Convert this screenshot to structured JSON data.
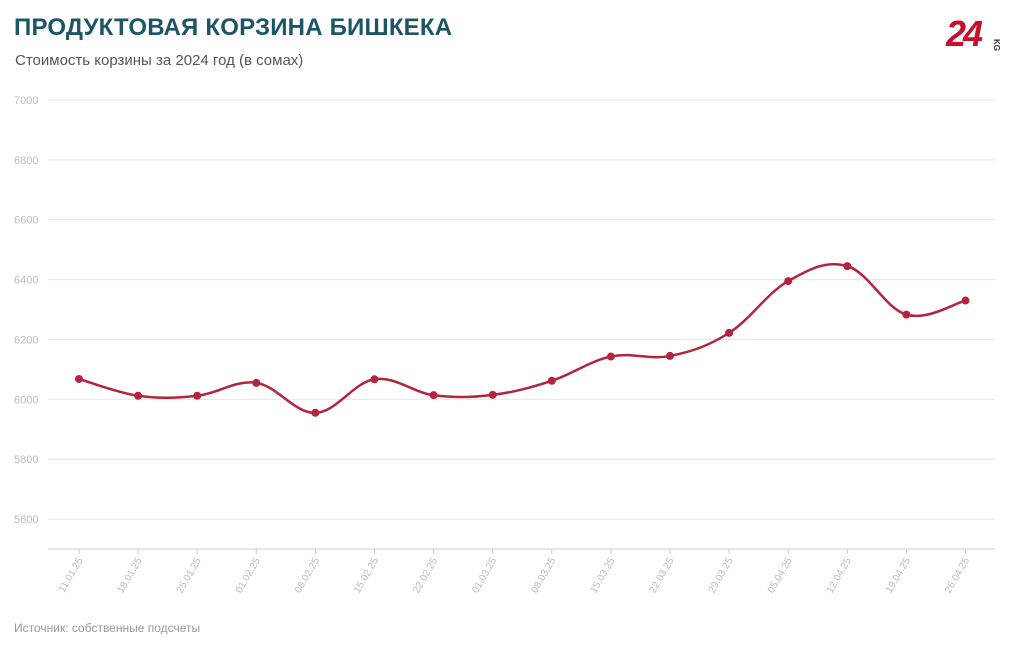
{
  "header": {
    "title": "ПРОДУКТОВАЯ КОРЗИНА БИШКЕКА",
    "subtitle": "Стоимость корзины за 2024 год (в сомах)"
  },
  "logo": {
    "main": "24",
    "suffix": "KG",
    "color": "#c8102e"
  },
  "footer": {
    "source": "Источник: собственные подсчеты"
  },
  "colors": {
    "line": "#b5243f",
    "grid": "#e6e6e6",
    "axis_text": "#bbbbbb",
    "title": "#1c5566"
  },
  "chart_data": {
    "type": "line",
    "title": "ПРОДУКТОВАЯ КОРЗИНА БИШКЕКА",
    "subtitle": "Стоимость корзины за 2024 год (в сомах)",
    "xlabel": "",
    "ylabel": "",
    "ylim": [
      5500,
      7000
    ],
    "yticks": [
      5600,
      5800,
      6000,
      6200,
      6400,
      6600,
      6800,
      7000
    ],
    "grid": true,
    "legend": "none",
    "categories": [
      "11.01.25",
      "18.01.25",
      "25.01.25",
      "01.02.25",
      "08.02.25",
      "15.02.25",
      "22.02.25",
      "01.03.25",
      "08.03.25",
      "15.03.25",
      "22.03.25",
      "29.03.25",
      "05.04.25",
      "12.04.25",
      "19.04.25",
      "26.04.25"
    ],
    "series": [
      {
        "values": [
          6068,
          6012,
          6012,
          6055,
          5955,
          6067,
          6014,
          6015,
          6062,
          6143,
          6145,
          6222,
          6395,
          6445,
          6283,
          6330
        ]
      }
    ]
  }
}
